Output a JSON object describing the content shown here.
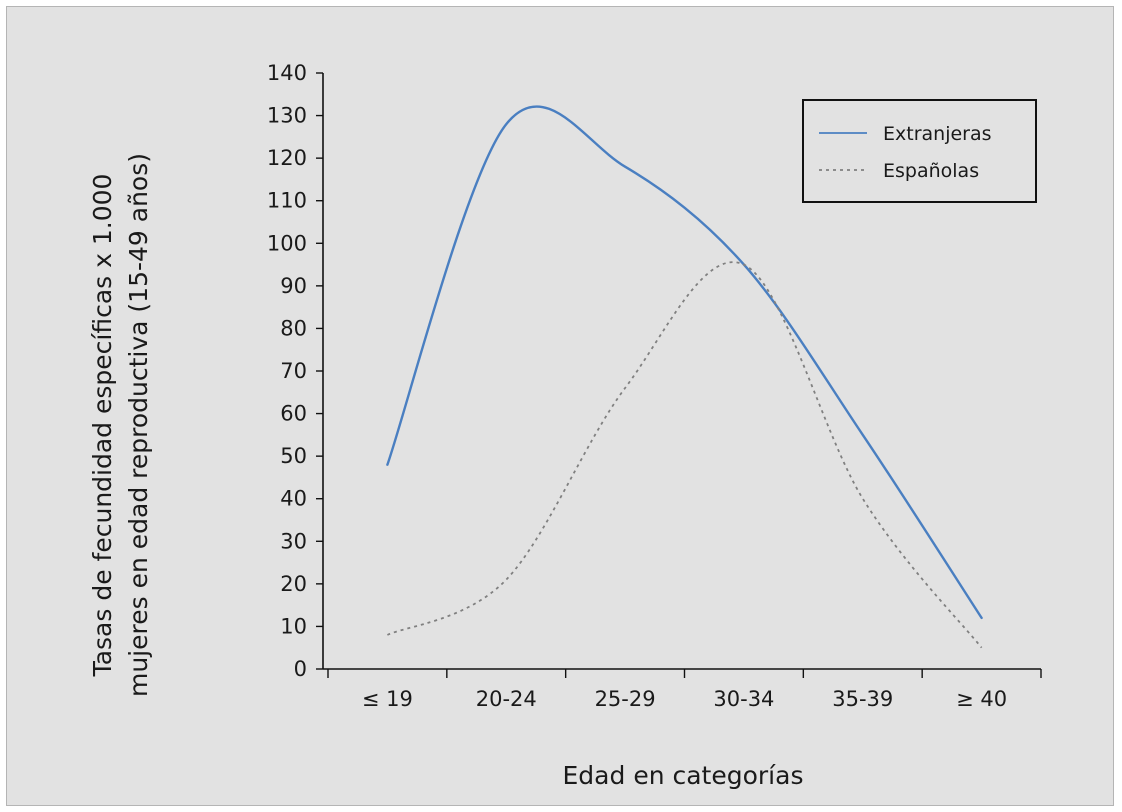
{
  "chart_data": {
    "type": "line",
    "title": "",
    "xlabel": "Edad en categorías",
    "ylabel_lines": [
      "Tasas de fecundidad específicas x 1.000",
      "mujeres en edad reproductiva (15-49 años)"
    ],
    "categories": [
      "≤ 19",
      "20-24",
      "25-29",
      "30-34",
      "35-39",
      "≥ 40"
    ],
    "yticks": [
      0,
      10,
      20,
      30,
      40,
      50,
      60,
      70,
      80,
      90,
      100,
      110,
      120,
      130,
      140
    ],
    "ylim": [
      0,
      140
    ],
    "grid": false,
    "legend_position": "top-right",
    "series": [
      {
        "name": "Extranjeras",
        "style": "solid",
        "color": "#4a7fc1",
        "values": [
          48,
          128,
          118,
          95,
          55,
          12
        ]
      },
      {
        "name": "Españolas",
        "style": "dotted",
        "color": "#808080",
        "values": [
          8,
          21,
          66,
          95,
          40,
          5
        ]
      }
    ]
  }
}
